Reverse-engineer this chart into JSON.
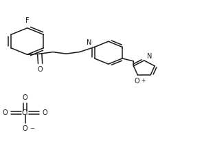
{
  "bg_color": "#ffffff",
  "line_color": "#1a1a1a",
  "line_width": 1.1,
  "font_size": 7.0,
  "figsize": [
    3.13,
    2.21
  ],
  "dpi": 100,
  "xlim": [
    0,
    1
  ],
  "ylim": [
    0,
    1
  ]
}
